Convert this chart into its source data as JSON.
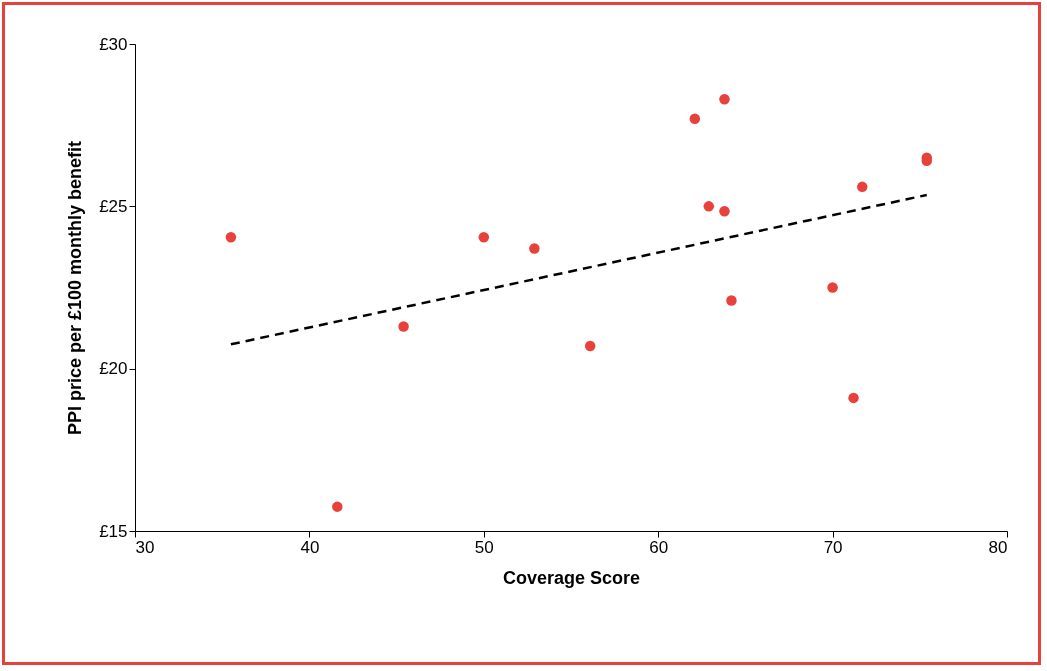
{
  "chart_data": {
    "type": "scatter",
    "xlabel": "Coverage Score",
    "ylabel": "PPI price per £100 monthly benefit",
    "xlim": [
      30,
      80
    ],
    "xticks": [
      30,
      40,
      50,
      60,
      70,
      80
    ],
    "ylim": [
      15,
      30
    ],
    "yticks": [
      {
        "value": 15,
        "label": "£15"
      },
      {
        "value": 20,
        "label": "£20"
      },
      {
        "value": 25,
        "label": "£25"
      },
      {
        "value": 30,
        "label": "£30"
      }
    ],
    "grid": false,
    "marker": "circle",
    "series": [
      {
        "color": "#e8413c",
        "x": [
          35.5,
          41.6,
          45.4,
          50.0,
          52.9,
          56.1,
          62.1,
          62.9,
          63.8,
          63.8,
          64.2,
          70.0,
          71.2,
          71.7,
          75.4,
          75.4
        ],
        "values": [
          24.05,
          15.75,
          21.3,
          24.05,
          23.7,
          20.7,
          27.7,
          25.0,
          28.3,
          24.85,
          22.1,
          22.5,
          19.1,
          25.6,
          26.5,
          26.4
        ]
      },
      {
        "type": "line",
        "color": "#000000",
        "line_style": "dashed",
        "marker": "none",
        "x": [
          35.5,
          75.4
        ],
        "values": [
          20.75,
          25.35
        ]
      }
    ]
  }
}
